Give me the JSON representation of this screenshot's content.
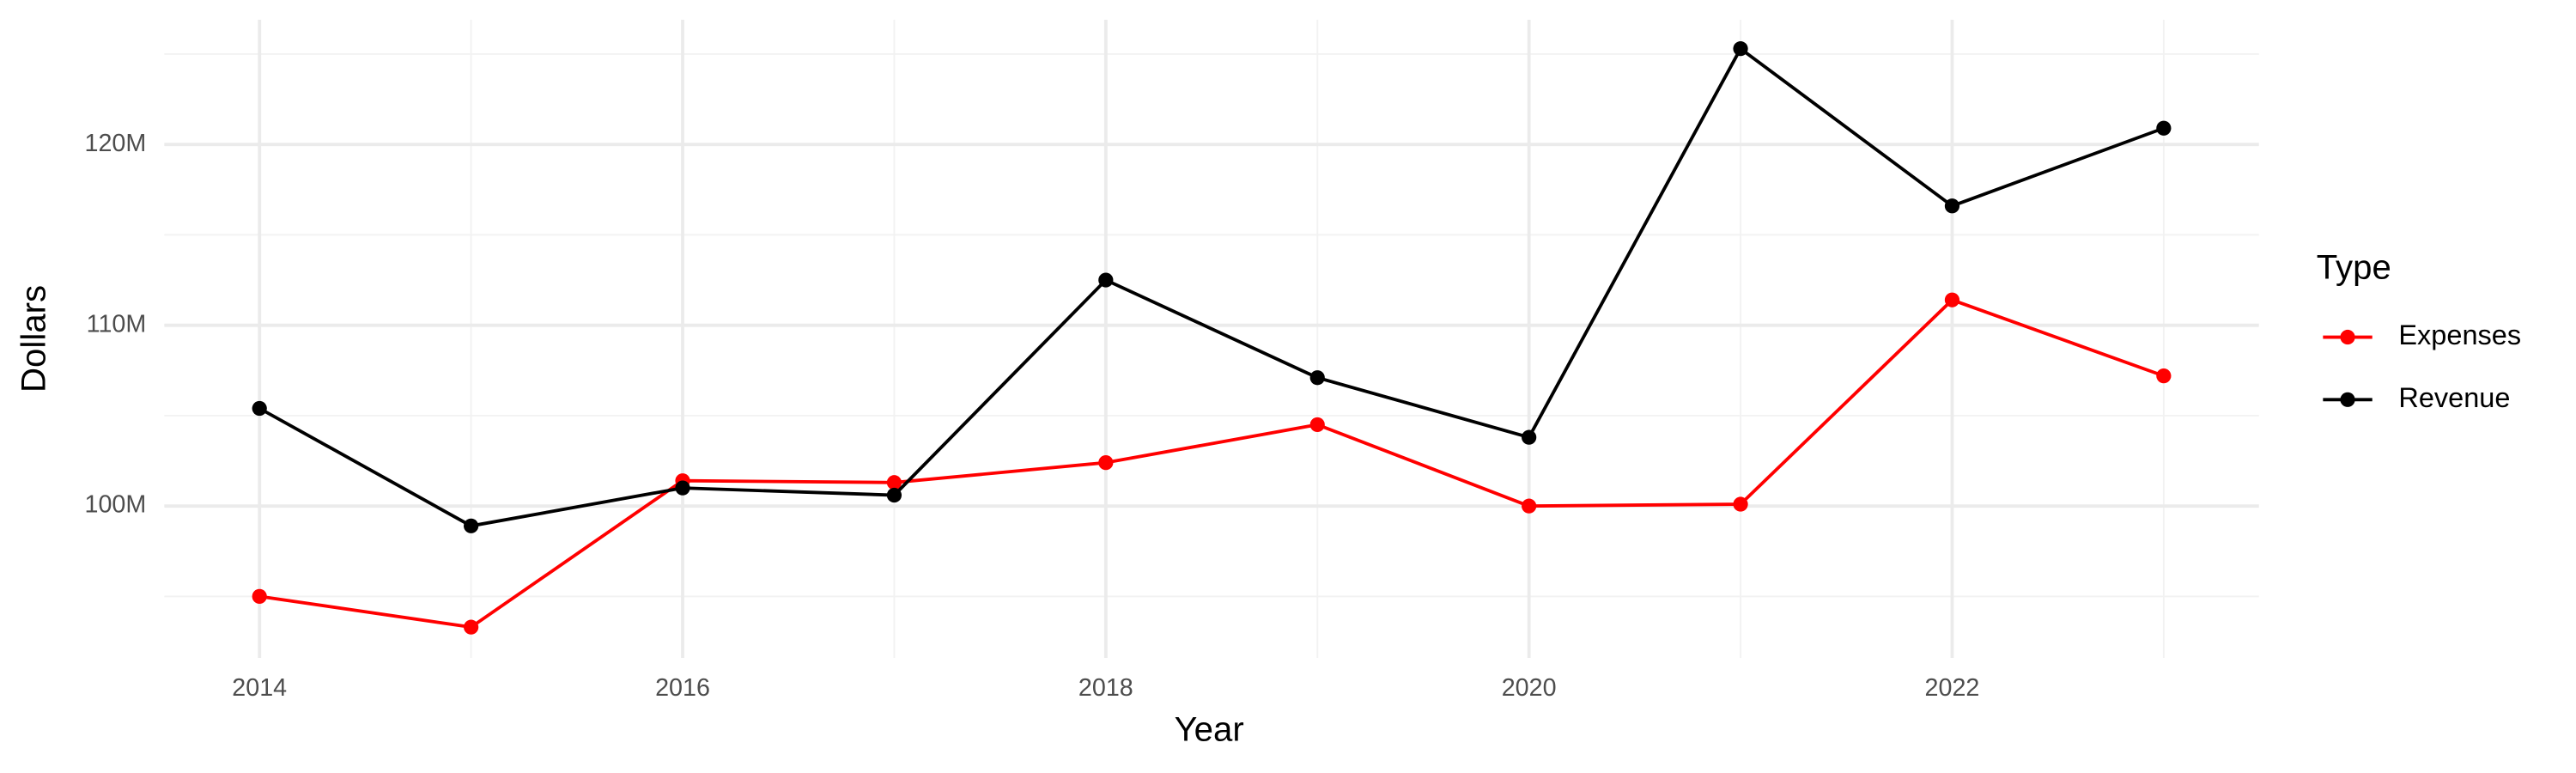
{
  "chart_data": {
    "type": "line",
    "x_label": "Year",
    "y_label": "Dollars",
    "legend_title": "Type",
    "legend_position": "right",
    "x": [
      2014,
      2015,
      2016,
      2017,
      2018,
      2019,
      2020,
      2021,
      2022,
      2023
    ],
    "series": [
      {
        "name": "Expenses",
        "color": "#ff0000",
        "values": [
          95000000,
          93300000,
          101400000,
          101300000,
          102400000,
          104500000,
          100000000,
          100100000,
          111400000,
          107200000
        ]
      },
      {
        "name": "Revenue",
        "color": "#000000",
        "values": [
          105400000,
          98900000,
          101000000,
          100600000,
          112500000,
          107100000,
          103800000,
          125300000,
          116600000,
          120900000
        ]
      }
    ],
    "xlim": [
      2013.55,
      2023.45
    ],
    "xticks": [
      2014,
      2016,
      2018,
      2020,
      2022
    ],
    "xminorticks": [
      2015,
      2017,
      2019,
      2021,
      2023
    ],
    "ylim": [
      91600000,
      126900000
    ],
    "yticks": [
      {
        "value": 100000000,
        "label": "100M"
      },
      {
        "value": 110000000,
        "label": "110M"
      },
      {
        "value": 120000000,
        "label": "120M"
      }
    ],
    "yminorticks": [
      95000000,
      105000000,
      115000000,
      125000000
    ],
    "grid": true
  }
}
